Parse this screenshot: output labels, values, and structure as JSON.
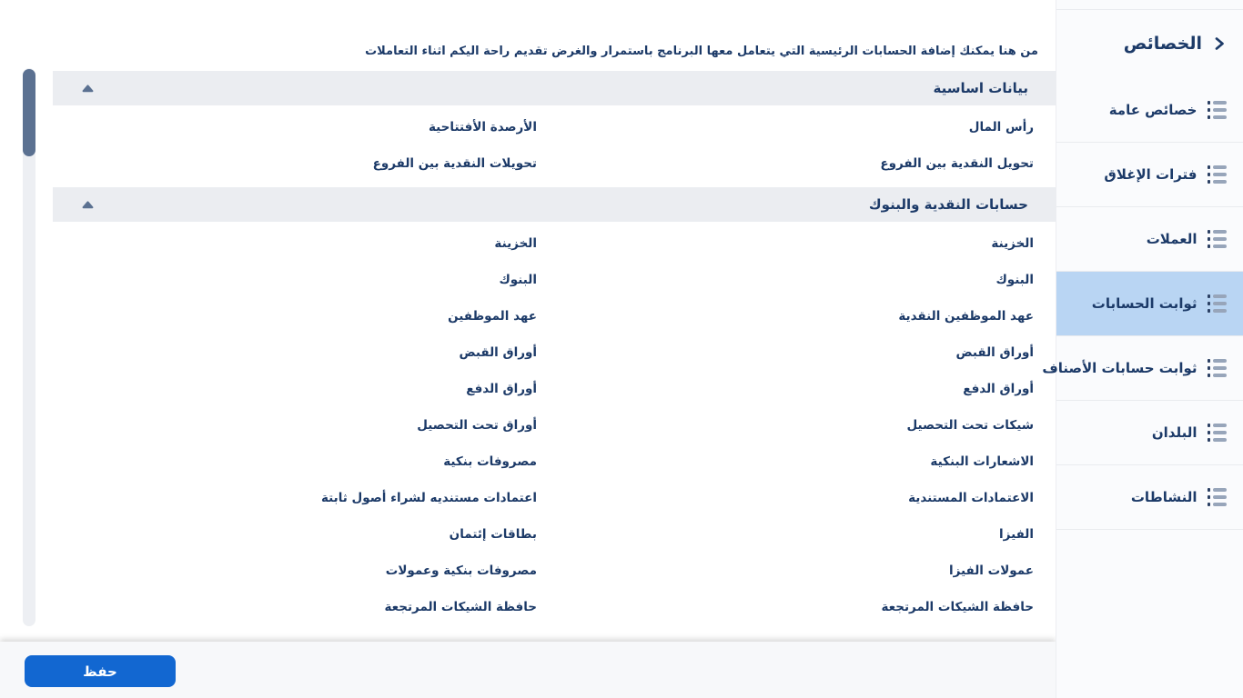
{
  "sidebar": {
    "title": "الخصائص",
    "items": [
      {
        "label": "خصائص عامة",
        "selected": false
      },
      {
        "label": "فترات الإغلاق",
        "selected": false
      },
      {
        "label": "العملات",
        "selected": false
      },
      {
        "label": "ثوابت الحسابات",
        "selected": true
      },
      {
        "label": "ثوابت حسابات الأصناف",
        "selected": false
      },
      {
        "label": "البلدان",
        "selected": false
      },
      {
        "label": "النشاطات",
        "selected": false
      }
    ]
  },
  "main": {
    "description": "من هنا يمكنك إضافة الحسابات الرئيسية التي يتعامل معها البرنامج باستمرار والغرض تقديم راحة اليكم اثناء التعاملات",
    "sections": [
      {
        "title": "بيانات اساسية",
        "collapse_icon": "triangle-up",
        "rows": [
          {
            "label": "رأس المال",
            "value": "الأرصدة الأفتتاحية"
          },
          {
            "label": "تحويل النقدية بين الفروع",
            "value": "تحويلات النقدية بين الفروع"
          }
        ]
      },
      {
        "title": "حسابات النقدية والبنوك",
        "collapse_icon": "triangle-up",
        "rows": [
          {
            "label": "الخزينة",
            "value": "الخزينة"
          },
          {
            "label": "البنوك",
            "value": "البنوك"
          },
          {
            "label": "عهد الموظفين النقدية",
            "value": "عهد الموظفين"
          },
          {
            "label": "أوراق القبض",
            "value": "أوراق القبض"
          },
          {
            "label": "أوراق الدفع",
            "value": "أوراق الدفع"
          },
          {
            "label": "شيكات تحت التحصيل",
            "value": "أوراق تحت التحصيل"
          },
          {
            "label": "الاشعارات البنكية",
            "value": "مصروفات بنكية"
          },
          {
            "label": "الاعتمادات المستندية",
            "value": "اعتمادات مستنديه لشراء أصول ثابتة"
          },
          {
            "label": "الفيزا",
            "value": "بطاقات إئتمان"
          },
          {
            "label": "عمولات الفيزا",
            "value": "مصروفات بنكية وعمولات"
          },
          {
            "label": "حافظة الشيكات المرتجعة",
            "value": "حافظة الشيكات المرتجعة"
          }
        ]
      }
    ]
  },
  "footer": {
    "save_label": "حفظ"
  },
  "colors": {
    "accent_blue": "#1267d1",
    "navy_text": "#1c3a68",
    "selected_item_bg": "#b9d5f3",
    "section_header_bg": "#ebedf1",
    "scrollbar_thumb": "#5b7191"
  }
}
